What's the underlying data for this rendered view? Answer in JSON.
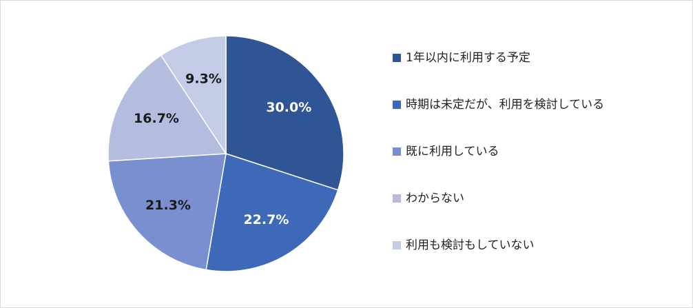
{
  "chart_data": {
    "type": "pie",
    "start_angle_deg": 0,
    "direction": "clockwise",
    "legend_placement": "right",
    "slices": [
      {
        "label": "1年以内に利用する予定",
        "value": 30.0,
        "display": "30.0%",
        "color": "#2f5597",
        "label_color": "#ffffff"
      },
      {
        "label": "時期は未定だが、利用を検討している",
        "value": 22.7,
        "display": "22.7%",
        "color": "#3d69b8",
        "label_color": "#ffffff"
      },
      {
        "label": "既に利用している",
        "value": 21.3,
        "display": "21.3%",
        "color": "#7a8fcf",
        "label_color": "#1a1a1a"
      },
      {
        "label": "わからない",
        "value": 16.7,
        "display": "16.7%",
        "color": "#b4bde0",
        "label_color": "#1a1a1a"
      },
      {
        "label": "利用も検討もしていない",
        "value": 9.3,
        "display": "9.3%",
        "color": "#c3cbe7",
        "label_color": "#1a1a1a"
      }
    ]
  }
}
